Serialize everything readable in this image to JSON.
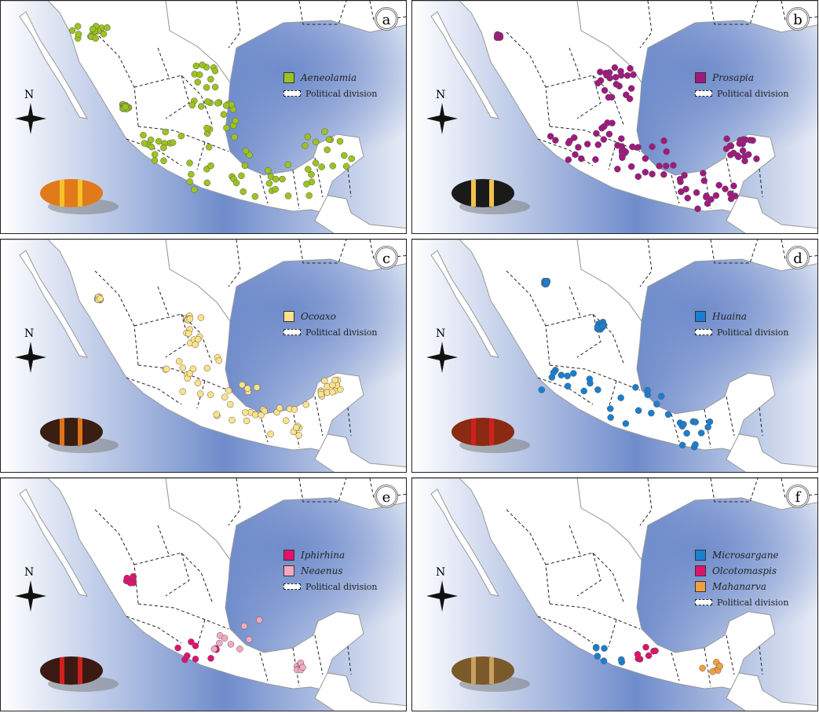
{
  "legend_political_division": "Political division",
  "compass_label": "N",
  "colors": {
    "ocean": "#6f8ccb",
    "land": "#ffffff",
    "border": "#222222"
  },
  "panels": [
    {
      "letter": "a",
      "taxa": [
        {
          "name": "Aeneolamia",
          "color": "#9dc31f"
        }
      ],
      "insect_colors": [
        "#e07a1a",
        "#f7c12a"
      ]
    },
    {
      "letter": "b",
      "taxa": [
        {
          "name": "Prosapia",
          "color": "#a0197f"
        }
      ],
      "insect_colors": [
        "#1a1a1a",
        "#f2c14a"
      ]
    },
    {
      "letter": "c",
      "taxa": [
        {
          "name": "Ocoaxo",
          "color": "#ffe28a"
        }
      ],
      "insect_colors": [
        "#3a1e12",
        "#e0731a"
      ]
    },
    {
      "letter": "d",
      "taxa": [
        {
          "name": "Huaina",
          "color": "#1a7fd0"
        }
      ],
      "insect_colors": [
        "#8a2a12",
        "#d02020"
      ]
    },
    {
      "letter": "e",
      "taxa": [
        {
          "name": "Iphirhina",
          "color": "#e0126e"
        },
        {
          "name": "Neaenus",
          "color": "#f5a9bf"
        }
      ],
      "insect_colors": [
        "#3a1a12",
        "#d02020"
      ]
    },
    {
      "letter": "f",
      "taxa": [
        {
          "name": "Microsargane",
          "color": "#1a7fd0"
        },
        {
          "name": "Olcotomaspis",
          "color": "#e0126e"
        },
        {
          "name": "Mahanarva",
          "color": "#f0a040"
        }
      ],
      "insect_colors": [
        "#7a5a2a",
        "#c9a060"
      ]
    }
  ]
}
